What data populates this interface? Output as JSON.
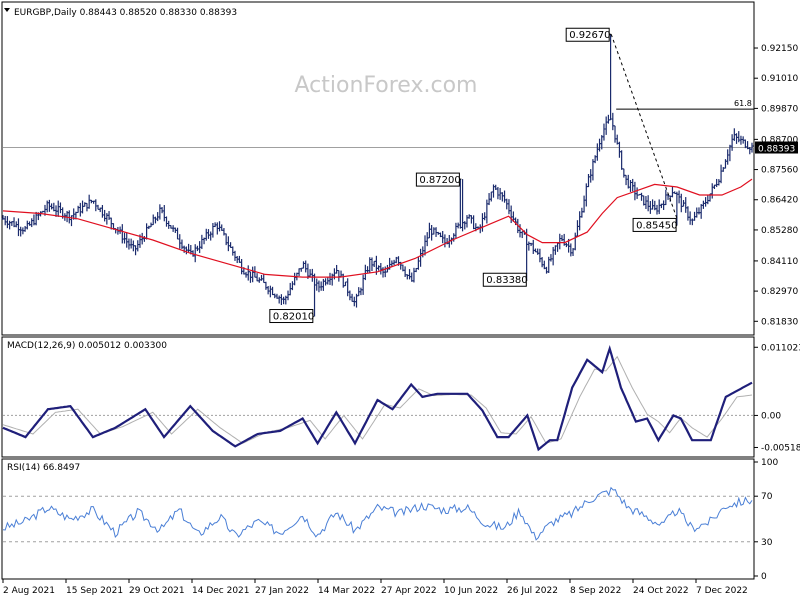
{
  "header": {
    "symbol_line": "EURGBP,Daily  0.88443 0.88520 0.88330 0.88393"
  },
  "watermark": "ActionForex.com",
  "colors": {
    "price": "#1a2a6c",
    "ma": "#e01020",
    "macd": "#1f1f7a",
    "signal": "#b0b0b0",
    "rsi": "#4a7fd6",
    "grid": "#a0a0a0",
    "last_price_tag": "#000000"
  },
  "chart_data": [
    {
      "type": "ohlc",
      "name": "price",
      "title": "EURGBP,Daily",
      "ylim": [
        0.8135,
        0.9385
      ],
      "yticks": [
        "0.92150",
        "0.91010",
        "0.89870",
        "0.88700",
        "0.87560",
        "0.86420",
        "0.85280",
        "0.84110",
        "0.82970",
        "0.81830"
      ],
      "ytick_values": [
        0.9215,
        0.9101,
        0.8987,
        0.887,
        0.8756,
        0.8642,
        0.8528,
        0.8411,
        0.8297,
        0.8183
      ],
      "last_price_label": "0.88393",
      "last_price": 0.88393,
      "x_labels": [
        "2 Aug 2021",
        "15 Sep 2021",
        "29 Oct 2021",
        "14 Dec 2021",
        "27 Jan 2022",
        "14 Mar 2022",
        "27 Apr 2022",
        "10 Jun 2022",
        "26 Jul 2022",
        "8 Sep 2022",
        "24 Oct 2022",
        "7 Dec 2022"
      ],
      "close_path": [
        [
          0.0,
          0.857
        ],
        [
          0.03,
          0.853
        ],
        [
          0.06,
          0.862
        ],
        [
          0.09,
          0.858
        ],
        [
          0.12,
          0.864
        ],
        [
          0.155,
          0.852
        ],
        [
          0.175,
          0.845
        ],
        [
          0.21,
          0.86
        ],
        [
          0.25,
          0.843
        ],
        [
          0.285,
          0.855
        ],
        [
          0.32,
          0.838
        ],
        [
          0.35,
          0.832
        ],
        [
          0.375,
          0.826
        ],
        [
          0.4,
          0.84
        ],
        [
          0.42,
          0.831
        ],
        [
          0.445,
          0.838
        ],
        [
          0.47,
          0.825
        ],
        [
          0.49,
          0.841
        ],
        [
          0.51,
          0.836
        ],
        [
          0.525,
          0.843
        ],
        [
          0.545,
          0.833
        ],
        [
          0.57,
          0.853
        ],
        [
          0.59,
          0.848
        ],
        [
          0.62,
          0.858
        ],
        [
          0.635,
          0.852
        ],
        [
          0.655,
          0.869
        ],
        [
          0.67,
          0.864
        ],
        [
          0.69,
          0.852
        ],
        [
          0.71,
          0.845
        ],
        [
          0.725,
          0.838
        ],
        [
          0.745,
          0.85
        ],
        [
          0.76,
          0.845
        ],
        [
          0.78,
          0.87
        ],
        [
          0.8,
          0.89
        ],
        [
          0.812,
          0.895
        ],
        [
          0.83,
          0.872
        ],
        [
          0.85,
          0.865
        ],
        [
          0.87,
          0.86
        ],
        [
          0.895,
          0.868
        ],
        [
          0.92,
          0.856
        ],
        [
          0.935,
          0.862
        ],
        [
          0.955,
          0.872
        ],
        [
          0.975,
          0.888
        ],
        [
          1.0,
          0.884
        ]
      ],
      "moving_average": [
        [
          0.0,
          0.86
        ],
        [
          0.05,
          0.859
        ],
        [
          0.1,
          0.857
        ],
        [
          0.15,
          0.853
        ],
        [
          0.2,
          0.849
        ],
        [
          0.25,
          0.844
        ],
        [
          0.3,
          0.84
        ],
        [
          0.35,
          0.836
        ],
        [
          0.4,
          0.835
        ],
        [
          0.45,
          0.835
        ],
        [
          0.5,
          0.837
        ],
        [
          0.55,
          0.842
        ],
        [
          0.6,
          0.849
        ],
        [
          0.65,
          0.855
        ],
        [
          0.675,
          0.858
        ],
        [
          0.7,
          0.851
        ],
        [
          0.72,
          0.848
        ],
        [
          0.75,
          0.848
        ],
        [
          0.78,
          0.852
        ],
        [
          0.8,
          0.859
        ],
        [
          0.82,
          0.865
        ],
        [
          0.85,
          0.868
        ],
        [
          0.87,
          0.87
        ],
        [
          0.9,
          0.869
        ],
        [
          0.93,
          0.866
        ],
        [
          0.96,
          0.866
        ],
        [
          0.985,
          0.869
        ],
        [
          1.0,
          0.872
        ]
      ],
      "annotations": [
        {
          "text": "0.92670",
          "value": 0.9267,
          "position": 0.812
        },
        {
          "text": "0.87200",
          "value": 0.872,
          "position": 0.612
        },
        {
          "text": "0.85450",
          "value": 0.8545,
          "position": 0.9
        },
        {
          "text": "0.83380",
          "value": 0.8338,
          "position": 0.7
        },
        {
          "text": "0.82010",
          "value": 0.8201,
          "position": 0.415
        }
      ],
      "fib_label": "61.8",
      "fib_level": 0.8984,
      "trendline": [
        [
          0.812,
          0.9267
        ],
        [
          0.9,
          0.857
        ]
      ]
    },
    {
      "type": "line",
      "name": "macd",
      "title": "MACD(12,26,9) 0.005012 0.003300",
      "ylim": [
        -0.0064,
        0.0122
      ],
      "yticks": [
        "0.011023",
        "0.00",
        "-0.005182"
      ],
      "ytick_values": [
        0.011023,
        0.0,
        -0.005182
      ],
      "macd_path": [
        [
          0.0,
          -0.002
        ],
        [
          0.03,
          -0.0035
        ],
        [
          0.06,
          0.001
        ],
        [
          0.09,
          0.0015
        ],
        [
          0.12,
          -0.0035
        ],
        [
          0.15,
          -0.002
        ],
        [
          0.19,
          0.001
        ],
        [
          0.215,
          -0.0035
        ],
        [
          0.25,
          0.0015
        ],
        [
          0.28,
          -0.0025
        ],
        [
          0.31,
          -0.005
        ],
        [
          0.34,
          -0.003
        ],
        [
          0.37,
          -0.0025
        ],
        [
          0.4,
          -0.0005
        ],
        [
          0.42,
          -0.0045
        ],
        [
          0.445,
          0.0005
        ],
        [
          0.47,
          -0.0045
        ],
        [
          0.5,
          0.0025
        ],
        [
          0.52,
          0.001
        ],
        [
          0.545,
          0.005
        ],
        [
          0.56,
          0.003
        ],
        [
          0.58,
          0.0035
        ],
        [
          0.6,
          0.0035
        ],
        [
          0.62,
          0.0035
        ],
        [
          0.64,
          0.0008
        ],
        [
          0.66,
          -0.0035
        ],
        [
          0.675,
          -0.0035
        ],
        [
          0.7,
          0.0
        ],
        [
          0.715,
          -0.0055
        ],
        [
          0.73,
          -0.004
        ],
        [
          0.74,
          -0.004
        ],
        [
          0.76,
          0.0045
        ],
        [
          0.78,
          0.009
        ],
        [
          0.8,
          0.007
        ],
        [
          0.81,
          0.0108
        ],
        [
          0.825,
          0.0045
        ],
        [
          0.845,
          -0.001
        ],
        [
          0.86,
          -0.0005
        ],
        [
          0.875,
          -0.004
        ],
        [
          0.895,
          0.0
        ],
        [
          0.905,
          -0.0005
        ],
        [
          0.92,
          -0.004
        ],
        [
          0.945,
          -0.004
        ],
        [
          0.965,
          0.003
        ],
        [
          1.0,
          0.0053
        ]
      ],
      "signal_path": [
        [
          0.0,
          -0.0015
        ],
        [
          0.04,
          -0.003
        ],
        [
          0.07,
          0.0005
        ],
        [
          0.1,
          0.001
        ],
        [
          0.13,
          -0.003
        ],
        [
          0.16,
          -0.0018
        ],
        [
          0.2,
          0.0005
        ],
        [
          0.225,
          -0.003
        ],
        [
          0.26,
          0.001
        ],
        [
          0.29,
          -0.002
        ],
        [
          0.32,
          -0.0045
        ],
        [
          0.35,
          -0.0028
        ],
        [
          0.38,
          -0.002
        ],
        [
          0.41,
          -0.0008
        ],
        [
          0.43,
          -0.0038
        ],
        [
          0.455,
          0.0
        ],
        [
          0.48,
          -0.0038
        ],
        [
          0.51,
          0.0018
        ],
        [
          0.53,
          0.0012
        ],
        [
          0.555,
          0.0043
        ],
        [
          0.575,
          0.0032
        ],
        [
          0.6,
          0.0034
        ],
        [
          0.625,
          0.0033
        ],
        [
          0.645,
          0.0012
        ],
        [
          0.665,
          -0.0028
        ],
        [
          0.685,
          -0.003
        ],
        [
          0.705,
          -0.0002
        ],
        [
          0.725,
          -0.0045
        ],
        [
          0.745,
          -0.0038
        ],
        [
          0.77,
          0.003
        ],
        [
          0.79,
          0.0075
        ],
        [
          0.805,
          0.0072
        ],
        [
          0.82,
          0.0095
        ],
        [
          0.84,
          0.0045
        ],
        [
          0.86,
          0.0002
        ],
        [
          0.875,
          -0.001
        ],
        [
          0.89,
          -0.0028
        ],
        [
          0.905,
          -0.0004
        ],
        [
          0.92,
          -0.002
        ],
        [
          0.94,
          -0.0035
        ],
        [
          0.96,
          -0.0005
        ],
        [
          0.98,
          0.003
        ],
        [
          1.0,
          0.0033
        ]
      ]
    },
    {
      "type": "line",
      "name": "rsi",
      "title": "RSI(14) 66.8497",
      "ylim": [
        0,
        100
      ],
      "yticks": [
        "100",
        "70",
        "30",
        "0"
      ],
      "ytick_values": [
        100,
        70,
        30,
        0
      ],
      "levels": [
        70,
        30
      ],
      "rsi_path": [
        [
          0.0,
          42
        ],
        [
          0.03,
          48
        ],
        [
          0.06,
          60
        ],
        [
          0.09,
          50
        ],
        [
          0.12,
          58
        ],
        [
          0.15,
          38
        ],
        [
          0.18,
          56
        ],
        [
          0.21,
          40
        ],
        [
          0.235,
          58
        ],
        [
          0.26,
          36
        ],
        [
          0.29,
          52
        ],
        [
          0.31,
          35
        ],
        [
          0.34,
          48
        ],
        [
          0.37,
          38
        ],
        [
          0.4,
          54
        ],
        [
          0.42,
          36
        ],
        [
          0.445,
          56
        ],
        [
          0.47,
          40
        ],
        [
          0.5,
          60
        ],
        [
          0.53,
          55
        ],
        [
          0.56,
          62
        ],
        [
          0.59,
          58
        ],
        [
          0.62,
          60
        ],
        [
          0.645,
          46
        ],
        [
          0.67,
          42
        ],
        [
          0.69,
          58
        ],
        [
          0.71,
          34
        ],
        [
          0.735,
          48
        ],
        [
          0.76,
          55
        ],
        [
          0.785,
          68
        ],
        [
          0.8,
          72
        ],
        [
          0.815,
          76
        ],
        [
          0.835,
          60
        ],
        [
          0.86,
          52
        ],
        [
          0.88,
          44
        ],
        [
          0.9,
          58
        ],
        [
          0.92,
          42
        ],
        [
          0.945,
          48
        ],
        [
          0.965,
          62
        ],
        [
          1.0,
          67
        ]
      ]
    }
  ]
}
